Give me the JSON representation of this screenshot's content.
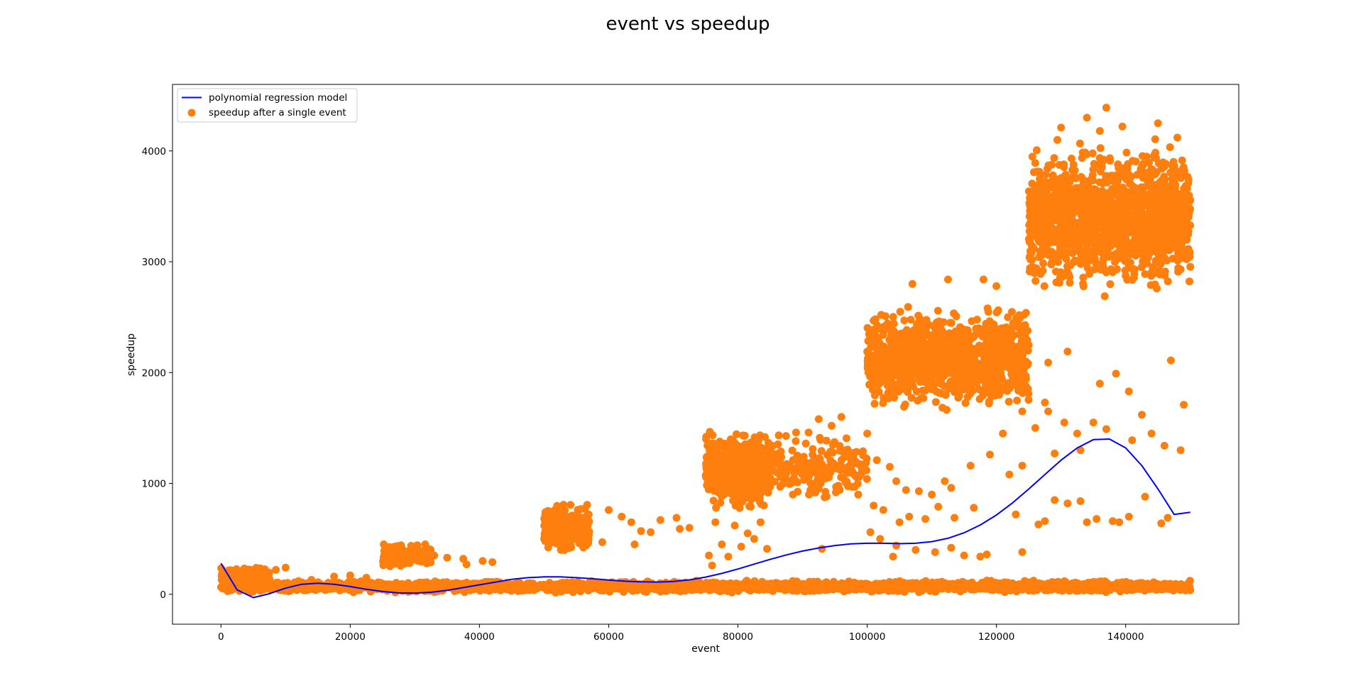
{
  "chart_data": {
    "type": "scatter",
    "title": "event vs speedup",
    "xlabel": "event",
    "ylabel": "speedup",
    "xlim": [
      -7500,
      157500
    ],
    "ylim": [
      -270,
      4600
    ],
    "xticks": [
      0,
      20000,
      40000,
      60000,
      80000,
      100000,
      120000,
      140000
    ],
    "yticks": [
      0,
      1000,
      2000,
      3000,
      4000
    ],
    "grid": false,
    "legend_position": "top-left",
    "colors": {
      "scatter": "#ff7f0e",
      "line": "#0000ff"
    },
    "series": [
      {
        "name": "polynomial regression model",
        "kind": "line",
        "x": [
          0,
          2500,
          5000,
          7500,
          10000,
          12500,
          15000,
          17500,
          20000,
          22500,
          25000,
          27500,
          30000,
          32500,
          35000,
          37500,
          40000,
          42500,
          45000,
          47500,
          50000,
          52500,
          55000,
          57500,
          60000,
          62500,
          65000,
          67500,
          70000,
          72500,
          75000,
          77500,
          80000,
          82500,
          85000,
          87500,
          90000,
          92500,
          95000,
          97500,
          100000,
          102500,
          105000,
          107500,
          110000,
          112500,
          115000,
          117500,
          120000,
          122500,
          125000,
          127500,
          130000,
          132500,
          135000,
          137500,
          140000,
          142500,
          145000,
          147500,
          150000
        ],
        "values": [
          280,
          40,
          -30,
          5,
          55,
          90,
          100,
          90,
          70,
          45,
          25,
          12,
          10,
          18,
          35,
          60,
          85,
          110,
          135,
          150,
          157,
          157,
          150,
          140,
          128,
          118,
          112,
          110,
          115,
          130,
          155,
          188,
          228,
          272,
          315,
          355,
          390,
          418,
          440,
          455,
          460,
          460,
          457,
          460,
          475,
          505,
          555,
          625,
          715,
          825,
          950,
          1080,
          1210,
          1320,
          1395,
          1400,
          1320,
          1160,
          950,
          720,
          740
        ]
      },
      {
        "name": "speedup after a single event",
        "kind": "scatter",
        "clusters": [
          {
            "x": [
              0,
              150000
            ],
            "y": [
              10,
              130
            ],
            "count": 2600
          },
          {
            "x": [
              0,
              7500
            ],
            "y": [
              80,
              260
            ],
            "count": 160
          },
          {
            "x": [
              25000,
              32500
            ],
            "y": [
              240,
              470
            ],
            "count": 240
          },
          {
            "x": [
              50000,
              57000
            ],
            "y": [
              360,
              850
            ],
            "count": 320
          },
          {
            "x": [
              75000,
              85000
            ],
            "y": [
              700,
              1520
            ],
            "count": 560
          },
          {
            "x": [
              85000,
              100000
            ],
            "y": [
              800,
              1500
            ],
            "count": 200
          },
          {
            "x": [
              100000,
              125000
            ],
            "y": [
              1600,
              2650
            ],
            "count": 1100
          },
          {
            "x": [
              125000,
              150000
            ],
            "y": [
              2650,
              4150
            ],
            "count": 1500
          }
        ],
        "outliers": [
          [
            137000,
            4390
          ],
          [
            134000,
            4300
          ],
          [
            139500,
            4220
          ],
          [
            145000,
            4250
          ],
          [
            136000,
            4180
          ],
          [
            130000,
            4210
          ],
          [
            148000,
            4120
          ],
          [
            112500,
            2840
          ],
          [
            118000,
            2840
          ],
          [
            107000,
            2800
          ],
          [
            120000,
            2780
          ],
          [
            147000,
            2110
          ],
          [
            140500,
            1830
          ],
          [
            138500,
            1990
          ],
          [
            136000,
            1900
          ],
          [
            131000,
            2190
          ],
          [
            128000,
            2090
          ],
          [
            127500,
            1730
          ],
          [
            149000,
            1710
          ],
          [
            142500,
            1620
          ],
          [
            137000,
            1490
          ],
          [
            141000,
            1390
          ],
          [
            144000,
            1450
          ],
          [
            133000,
            1300
          ],
          [
            129000,
            1270
          ],
          [
            132500,
            1450
          ],
          [
            148500,
            1300
          ],
          [
            146000,
            1340
          ],
          [
            135000,
            1550
          ],
          [
            100000,
            1450
          ],
          [
            101500,
            1210
          ],
          [
            103500,
            1150
          ],
          [
            104500,
            1020
          ],
          [
            106000,
            940
          ],
          [
            108000,
            930
          ],
          [
            110000,
            900
          ],
          [
            112000,
            1020
          ],
          [
            113000,
            960
          ],
          [
            116000,
            1160
          ],
          [
            119000,
            1260
          ],
          [
            121000,
            1450
          ],
          [
            124000,
            1650
          ],
          [
            126000,
            1500
          ],
          [
            128000,
            1650
          ],
          [
            130500,
            1550
          ],
          [
            101000,
            800
          ],
          [
            102500,
            760
          ],
          [
            105000,
            650
          ],
          [
            106500,
            700
          ],
          [
            109000,
            680
          ],
          [
            111000,
            790
          ],
          [
            113500,
            690
          ],
          [
            116500,
            780
          ],
          [
            118500,
            360
          ],
          [
            115000,
            350
          ],
          [
            117500,
            340
          ],
          [
            123000,
            720
          ],
          [
            124000,
            1160
          ],
          [
            122000,
            1080
          ],
          [
            126500,
            630
          ],
          [
            127500,
            660
          ],
          [
            129000,
            850
          ],
          [
            131000,
            820
          ],
          [
            133000,
            840
          ],
          [
            134000,
            650
          ],
          [
            135500,
            680
          ],
          [
            138000,
            660
          ],
          [
            139000,
            650
          ],
          [
            140500,
            700
          ],
          [
            143000,
            880
          ],
          [
            146500,
            690
          ],
          [
            145500,
            640
          ],
          [
            100500,
            560
          ],
          [
            102000,
            500
          ],
          [
            104500,
            440
          ],
          [
            107500,
            400
          ],
          [
            110500,
            380
          ],
          [
            113000,
            420
          ],
          [
            124000,
            380
          ],
          [
            104000,
            340
          ],
          [
            76500,
            650
          ],
          [
            77500,
            450
          ],
          [
            78500,
            340
          ],
          [
            79500,
            620
          ],
          [
            80500,
            430
          ],
          [
            81500,
            550
          ],
          [
            82500,
            500
          ],
          [
            83500,
            650
          ],
          [
            84500,
            410
          ],
          [
            75500,
            350
          ],
          [
            76000,
            260
          ],
          [
            93000,
            410
          ],
          [
            92500,
            1580
          ],
          [
            96000,
            1600
          ],
          [
            94500,
            1520
          ],
          [
            89000,
            1460
          ],
          [
            90500,
            1360
          ],
          [
            88500,
            900
          ],
          [
            91000,
            900
          ],
          [
            60000,
            760
          ],
          [
            62000,
            700
          ],
          [
            63500,
            650
          ],
          [
            65000,
            570
          ],
          [
            66500,
            560
          ],
          [
            68000,
            670
          ],
          [
            71000,
            590
          ],
          [
            72500,
            600
          ],
          [
            70500,
            690
          ],
          [
            64000,
            450
          ],
          [
            59000,
            470
          ],
          [
            56500,
            440
          ],
          [
            27000,
            380
          ],
          [
            33000,
            350
          ],
          [
            35000,
            330
          ],
          [
            37500,
            320
          ],
          [
            40500,
            300
          ],
          [
            42000,
            290
          ],
          [
            38000,
            270
          ],
          [
            6000,
            190
          ],
          [
            8500,
            220
          ],
          [
            10000,
            240
          ],
          [
            12000,
            120
          ],
          [
            14000,
            130
          ],
          [
            17500,
            160
          ],
          [
            20000,
            170
          ],
          [
            22500,
            150
          ]
        ]
      }
    ]
  }
}
